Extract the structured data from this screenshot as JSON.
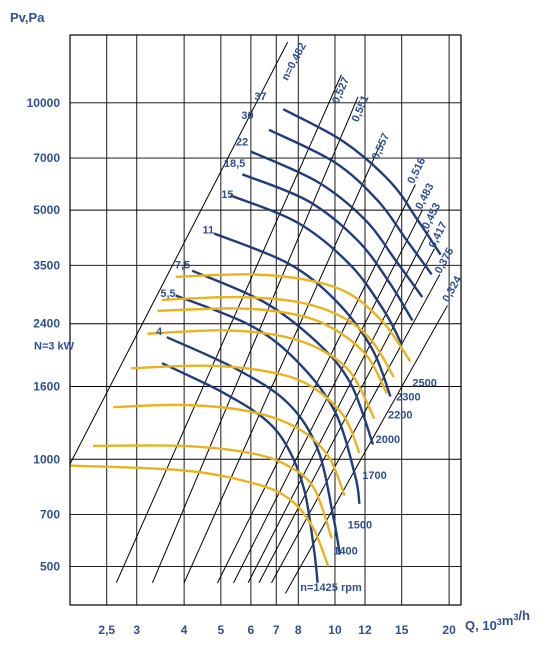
{
  "chart_data": {
    "type": "line",
    "title": "",
    "xlabel": "Q, 10³m³/h",
    "ylabel": "Pv,Pa",
    "x_scale": "log",
    "y_scale": "log",
    "xlim": [
      2.0,
      21.5
    ],
    "ylim": [
      390,
      15500
    ],
    "x_ticks": [
      {
        "v": 2.5,
        "label": "2,5"
      },
      {
        "v": 3,
        "label": "3"
      },
      {
        "v": 4,
        "label": "4"
      },
      {
        "v": 5,
        "label": "5"
      },
      {
        "v": 6,
        "label": "6"
      },
      {
        "v": 7,
        "label": "7"
      },
      {
        "v": 8,
        "label": "8"
      },
      {
        "v": 10,
        "label": "10"
      },
      {
        "v": 12,
        "label": "12"
      },
      {
        "v": 15,
        "label": "15"
      },
      {
        "v": 20,
        "label": "20"
      }
    ],
    "y_ticks": [
      {
        "v": 500,
        "label": "500"
      },
      {
        "v": 700,
        "label": "700"
      },
      {
        "v": 1000,
        "label": "1000"
      },
      {
        "v": 1600,
        "label": "1600"
      },
      {
        "v": 2400,
        "label": "2400"
      },
      {
        "v": 3500,
        "label": "3500"
      },
      {
        "v": 5000,
        "label": "5000"
      },
      {
        "v": 7000,
        "label": "7000"
      },
      {
        "v": 10000,
        "label": "10000"
      }
    ],
    "grid": true,
    "speed_curves": [
      {
        "label": "n=1425 rpm",
        "points": [
          [
            2.0,
            960
          ],
          [
            4.0,
            930
          ],
          [
            6.0,
            860
          ],
          [
            7.5,
            780
          ],
          [
            8.7,
            650
          ],
          [
            9.6,
            500
          ]
        ],
        "label_at": [
          8.1,
          427
        ]
      },
      {
        "label": "1400",
        "points": [
          [
            2.3,
            1090
          ],
          [
            4.0,
            1090
          ],
          [
            6.0,
            1040
          ],
          [
            7.5,
            960
          ],
          [
            8.8,
            830
          ],
          [
            9.8,
            600
          ]
        ],
        "label_at": [
          9.9,
          540
        ]
      },
      {
        "label": "1500",
        "points": [
          [
            2.6,
            1400
          ],
          [
            4.0,
            1420
          ],
          [
            6.0,
            1360
          ],
          [
            8.0,
            1220
          ],
          [
            9.6,
            1020
          ],
          [
            10.6,
            790
          ]
        ],
        "label_at": [
          10.8,
          640
        ]
      },
      {
        "label": "1700",
        "points": [
          [
            2.9,
            1800
          ],
          [
            4.5,
            1830
          ],
          [
            6.5,
            1770
          ],
          [
            8.5,
            1620
          ],
          [
            10.5,
            1330
          ],
          [
            11.6,
            1040
          ]
        ],
        "label_at": [
          11.8,
          880
        ]
      },
      {
        "label": "2000",
        "points": [
          [
            3.2,
            2250
          ],
          [
            5.0,
            2300
          ],
          [
            7.0,
            2230
          ],
          [
            9.0,
            2050
          ],
          [
            11.0,
            1750
          ],
          [
            12.7,
            1300
          ]
        ],
        "label_at": [
          12.8,
          1110
        ]
      },
      {
        "label": "2200",
        "points": [
          [
            3.4,
            2610
          ],
          [
            5.5,
            2650
          ],
          [
            7.5,
            2570
          ],
          [
            9.5,
            2380
          ],
          [
            12.0,
            1980
          ],
          [
            13.7,
            1530
          ]
        ],
        "label_at": [
          13.8,
          1300
        ]
      },
      {
        "label": "2300",
        "points": [
          [
            3.5,
            2800
          ],
          [
            5.5,
            2850
          ],
          [
            8.0,
            2760
          ],
          [
            10.5,
            2500
          ],
          [
            12.5,
            2150
          ],
          [
            14.3,
            1700
          ]
        ],
        "label_at": [
          14.5,
          1460
        ]
      },
      {
        "label": "2500",
        "points": [
          [
            3.8,
            3250
          ],
          [
            6.0,
            3300
          ],
          [
            8.5,
            3180
          ],
          [
            11.0,
            2900
          ],
          [
            13.5,
            2400
          ],
          [
            15.8,
            1880
          ]
        ],
        "label_at": [
          16.0,
          1600
        ]
      }
    ],
    "power_curves": [
      {
        "label": "N=3 kW",
        "points": [
          [
            3.5,
            1860
          ],
          [
            5.0,
            1550
          ],
          [
            6.5,
            1300
          ],
          [
            7.5,
            1080
          ],
          [
            8.3,
            820
          ],
          [
            8.8,
            560
          ],
          [
            9.0,
            450
          ]
        ],
        "label_at": [
          2.05,
          2030
        ]
      },
      {
        "label": "4",
        "points": [
          [
            3.6,
            2200
          ],
          [
            5.5,
            1790
          ],
          [
            7.5,
            1440
          ],
          [
            9.0,
            1070
          ],
          [
            9.9,
            690
          ],
          [
            10.3,
            540
          ]
        ],
        "label_at": [
          3.5,
          2230
        ]
      },
      {
        "label": "5,5",
        "points": [
          [
            3.8,
            2880
          ],
          [
            6.0,
            2370
          ],
          [
            8.0,
            1870
          ],
          [
            10.0,
            1360
          ],
          [
            11.3,
            900
          ],
          [
            11.6,
            750
          ]
        ],
        "label_at": [
          3.8,
          2850
        ]
      },
      {
        "label": "7,5",
        "points": [
          [
            4.2,
            3380
          ],
          [
            6.5,
            2760
          ],
          [
            9.0,
            2120
          ],
          [
            11.0,
            1630
          ],
          [
            12.6,
            1100
          ]
        ],
        "label_at": [
          4.15,
          3430
        ]
      },
      {
        "label": "11",
        "points": [
          [
            4.8,
            4300
          ],
          [
            7.5,
            3550
          ],
          [
            10.0,
            2800
          ],
          [
            12.5,
            2050
          ],
          [
            14.0,
            1500
          ]
        ],
        "label_at": [
          4.8,
          4300
        ]
      },
      {
        "label": "15",
        "points": [
          [
            5.3,
            5500
          ],
          [
            8.0,
            4600
          ],
          [
            11.0,
            3500
          ],
          [
            13.5,
            2600
          ],
          [
            15.0,
            2100
          ]
        ],
        "label_at": [
          5.4,
          5400
        ]
      },
      {
        "label": "18,5",
        "points": [
          [
            5.7,
            6300
          ],
          [
            8.5,
            5300
          ],
          [
            11.5,
            4100
          ],
          [
            14.0,
            3100
          ],
          [
            16.0,
            2450
          ]
        ],
        "label_at": [
          5.8,
          6600
        ]
      },
      {
        "label": "22",
        "points": [
          [
            6.0,
            7300
          ],
          [
            9.0,
            6000
          ],
          [
            12.0,
            4700
          ],
          [
            14.5,
            3600
          ],
          [
            17.0,
            2850
          ]
        ],
        "label_at": [
          5.9,
          7600
        ]
      },
      {
        "label": "30",
        "points": [
          [
            6.7,
            8400
          ],
          [
            10.0,
            6800
          ],
          [
            13.0,
            5300
          ],
          [
            15.5,
            4100
          ],
          [
            18.0,
            3300
          ]
        ],
        "label_at": [
          6.1,
          9000
        ]
      },
      {
        "label": "37",
        "points": [
          [
            7.3,
            9600
          ],
          [
            10.5,
            7800
          ],
          [
            14.0,
            6000
          ],
          [
            16.5,
            4700
          ],
          [
            19.0,
            3750
          ]
        ],
        "label_at": [
          6.6,
          10200
        ]
      }
    ],
    "efficiency_lines": [
      {
        "label": "n=0,482",
        "a": [
          2.0,
          970
        ],
        "b": [
          7.5,
          14800
        ],
        "label_at": [
          7.5,
          11500
        ]
      },
      {
        "label": "0,527",
        "a": [
          2.65,
          450
        ],
        "b": [
          10.4,
          12000
        ],
        "label_at": [
          10.2,
          9900
        ]
      },
      {
        "label": "0,551",
        "a": [
          3.3,
          450
        ],
        "b": [
          11.5,
          10400
        ],
        "label_at": [
          11.5,
          8800
        ]
      },
      {
        "label": "0,557",
        "a": [
          4.0,
          450
        ],
        "b": [
          13.2,
          7700
        ],
        "label_at": [
          13.0,
          6900
        ]
      },
      {
        "label": "0,516",
        "a": [
          4.9,
          450
        ],
        "b": [
          16.3,
          5900
        ],
        "label_at": [
          16.1,
          5900
        ]
      },
      {
        "label": "0,483",
        "a": [
          5.4,
          450
        ],
        "b": [
          17.0,
          5000
        ],
        "label_at": [
          16.9,
          5000
        ]
      },
      {
        "label": "0,453",
        "a": [
          5.9,
          450
        ],
        "b": [
          17.7,
          4400
        ],
        "label_at": [
          17.6,
          4400
        ]
      },
      {
        "label": "0,417",
        "a": [
          6.3,
          450
        ],
        "b": [
          18.3,
          3900
        ],
        "label_at": [
          18.3,
          3900
        ]
      },
      {
        "label": "0,375",
        "a": [
          6.8,
          450
        ],
        "b": [
          18.9,
          3300
        ],
        "label_at": [
          19.0,
          3300
        ]
      },
      {
        "label": "0,324",
        "a": [
          7.4,
          420
        ],
        "b": [
          19.8,
          2700
        ],
        "label_at": [
          19.9,
          2750
        ]
      }
    ]
  }
}
